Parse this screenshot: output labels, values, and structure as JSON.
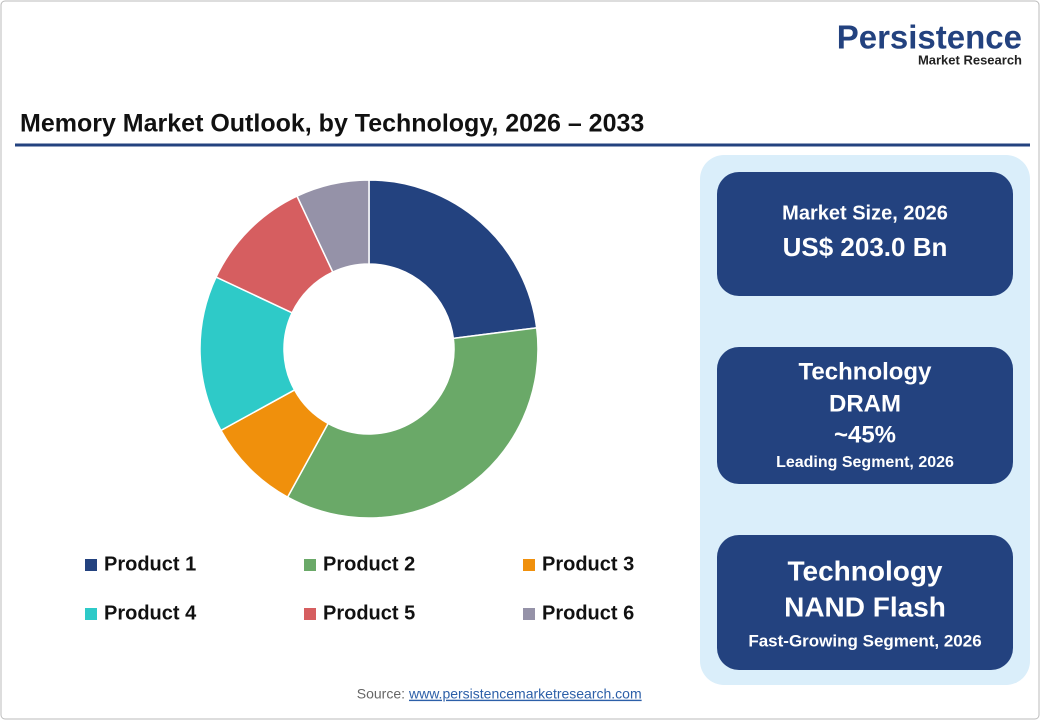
{
  "header": {
    "brand": "Persistence",
    "brand_sub": "Market Research",
    "title": "Memory Market Outlook, by Technology, 2026 – 2033"
  },
  "chart_data": {
    "type": "donut",
    "categories": [
      "Product 1",
      "Product 2",
      "Product 3",
      "Product 4",
      "Product 5",
      "Product 6"
    ],
    "values": [
      23,
      35,
      9,
      15,
      11,
      7
    ],
    "colors": [
      "#23427f",
      "#6aa968",
      "#f0900c",
      "#2ecac8",
      "#d65e60",
      "#9592a8"
    ]
  },
  "panels": [
    {
      "lines": [
        "Market Size, 2026",
        "US$ 203.0 Bn"
      ]
    },
    {
      "lines": [
        "Technology",
        "DRAM",
        "~45%",
        "Leading Segment, 2026"
      ]
    },
    {
      "lines": [
        "Technology",
        "NAND Flash",
        "Fast-Growing Segment, 2026"
      ]
    }
  ],
  "footer": {
    "source_label": "Source:",
    "source_link": "www.persistencemarketresearch.com"
  }
}
